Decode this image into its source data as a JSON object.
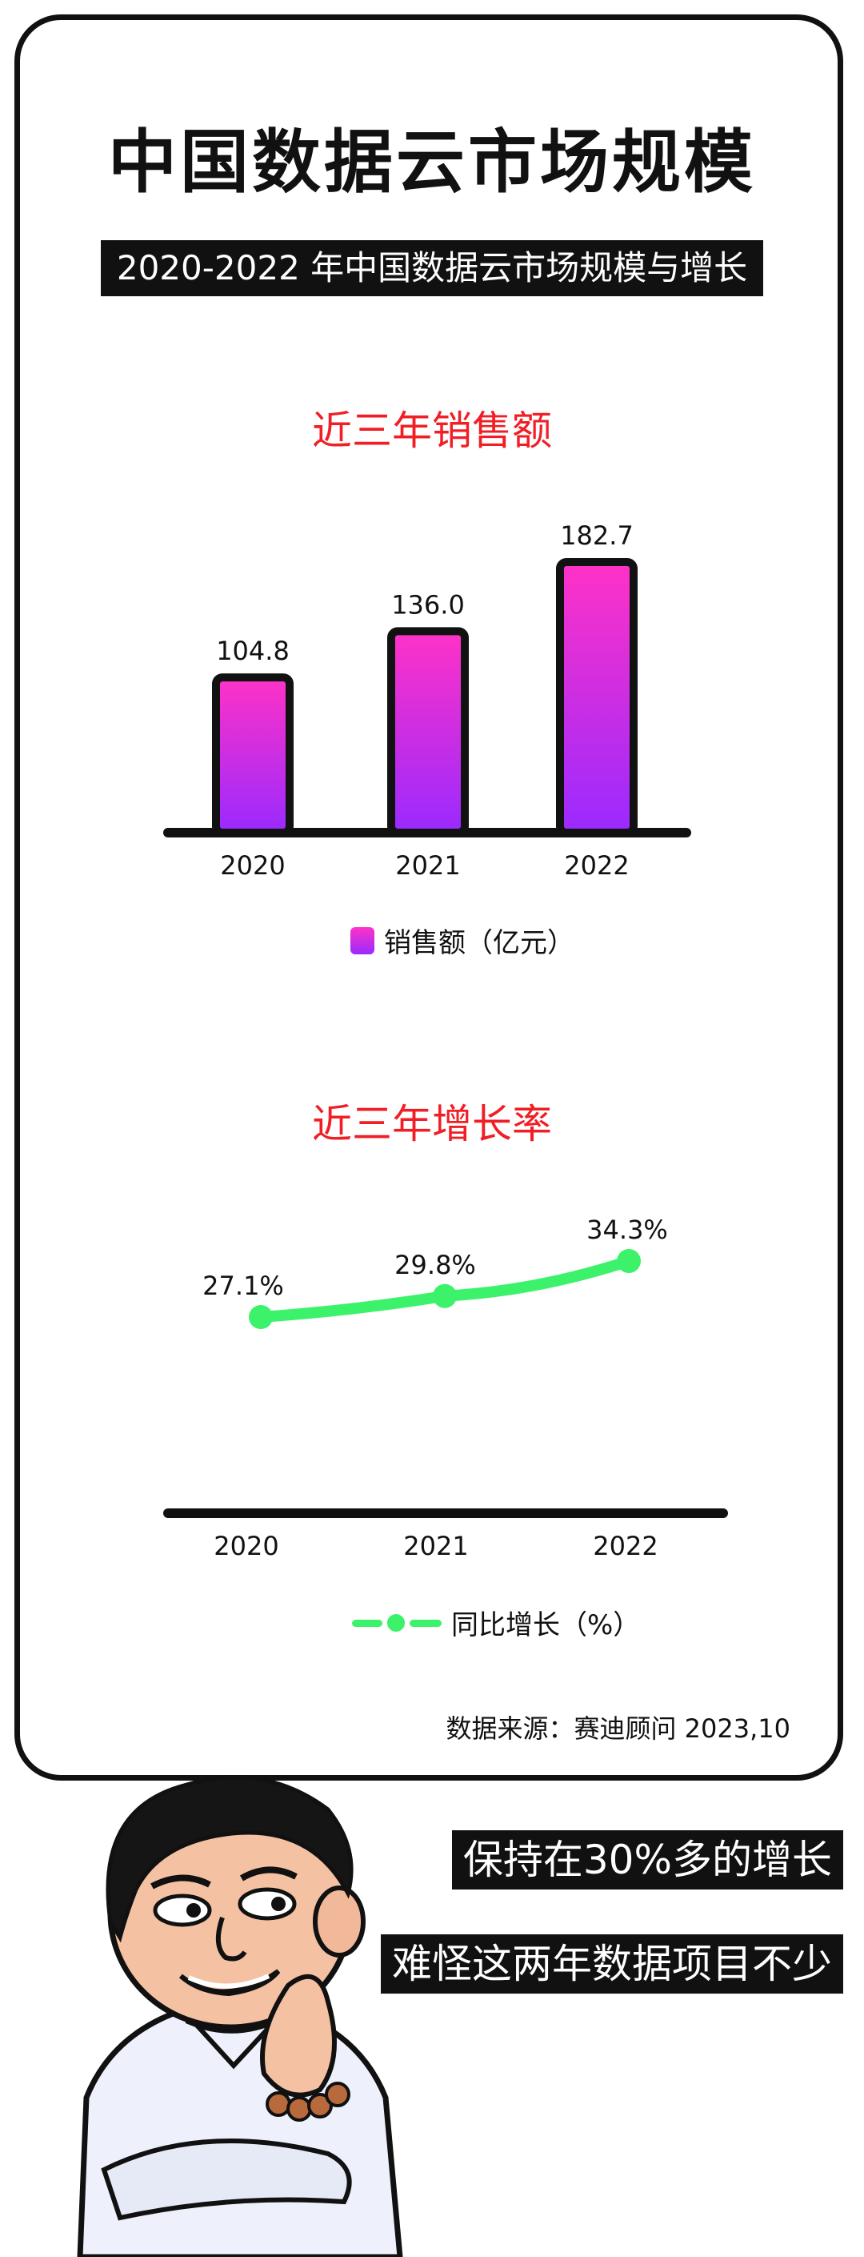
{
  "header": {
    "title": "中国数据云市场规模",
    "subtitle": "2020-2022 年中国数据云市场规模与增长"
  },
  "colors": {
    "title_red": "#f01f26",
    "bar_gradient_top": "#ff32c6",
    "bar_gradient_bottom": "#9a2aff",
    "line_green": "#3cf26a",
    "ink": "#111111"
  },
  "sales_section": {
    "title": "近三年销售额"
  },
  "growth_section": {
    "title": "近三年增长率"
  },
  "chart_data": [
    {
      "type": "bar",
      "title": "近三年销售额",
      "categories": [
        "2020",
        "2021",
        "2022"
      ],
      "series": [
        {
          "name": "销售额（亿元）",
          "values": [
            104.8,
            136.0,
            182.7
          ],
          "labels": [
            "104.8",
            "136.0",
            "182.7"
          ]
        }
      ],
      "ylim": [
        0,
        200
      ],
      "grid": false,
      "legend": "bottom-center"
    },
    {
      "type": "line",
      "title": "近三年增长率",
      "categories": [
        "2020",
        "2021",
        "2022"
      ],
      "series": [
        {
          "name": "同比增长（%）",
          "values": [
            27.1,
            29.8,
            34.3
          ],
          "labels": [
            "27.1%",
            "29.8%",
            "34.3%"
          ]
        }
      ],
      "grid": false,
      "legend": "bottom-center"
    }
  ],
  "source": "数据来源：赛迪顾问  2023,10",
  "captions": [
    "保持在30%多的增长",
    "难怪这两年数据项目不少"
  ]
}
